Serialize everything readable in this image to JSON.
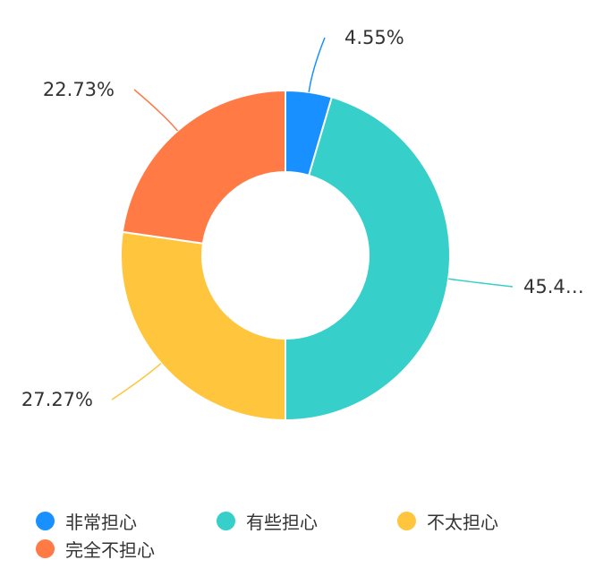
{
  "chart_data": {
    "type": "pie",
    "variant": "donut",
    "title": "",
    "categories": [
      "非常担心",
      "有些担心",
      "不太担心",
      "完全不担心"
    ],
    "values": [
      4.55,
      45.45,
      27.27,
      22.73
    ],
    "labels": [
      "4.55%",
      "45.4…",
      "27.27%",
      "22.73%"
    ],
    "colors": [
      "#1890ff",
      "#36cfc9",
      "#ffc53d",
      "#ff7a45"
    ],
    "legend_position": "bottom-left",
    "label_style": "outer-with-leader-lines"
  },
  "legend": {
    "items": [
      {
        "label": "非常担心",
        "color": "#1890ff"
      },
      {
        "label": "有些担心",
        "color": "#36cfc9"
      },
      {
        "label": "不太担心",
        "color": "#ffc53d"
      },
      {
        "label": "完全不担心",
        "color": "#ff7a45"
      }
    ]
  }
}
